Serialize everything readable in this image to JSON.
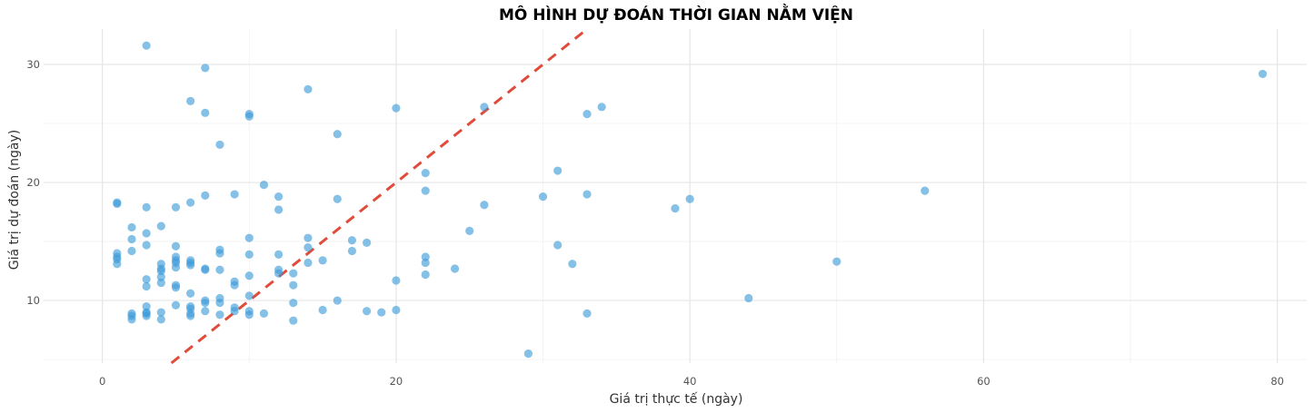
{
  "chart_data": {
    "type": "scatter",
    "title": "MÔ HÌNH DỰ ĐOÁN THỜI GIAN NẰM VIỆN",
    "xlabel": "Giá trị thực tế (ngày)",
    "ylabel": "Giá trị dự đoán (ngày)",
    "xlim": [
      -4,
      82
    ],
    "ylim": [
      4.7,
      33
    ],
    "x_ticks": [
      0,
      20,
      40,
      60,
      80
    ],
    "y_ticks": [
      10,
      20,
      30
    ],
    "grid": true,
    "reference_line": {
      "type": "y=x",
      "color": "#e04b3a",
      "style": "dashed"
    },
    "point_color": "#3a9ad9",
    "points": [
      [
        1,
        18.3
      ],
      [
        1,
        18.2
      ],
      [
        1,
        14.0
      ],
      [
        1,
        13.7
      ],
      [
        1,
        13.5
      ],
      [
        1,
        13.1
      ],
      [
        2,
        16.2
      ],
      [
        2,
        15.2
      ],
      [
        2,
        14.2
      ],
      [
        2,
        8.9
      ],
      [
        2,
        8.7
      ],
      [
        2,
        8.4
      ],
      [
        3,
        31.6
      ],
      [
        3,
        17.9
      ],
      [
        3,
        15.7
      ],
      [
        3,
        14.7
      ],
      [
        3,
        11.8
      ],
      [
        3,
        11.2
      ],
      [
        3,
        9.5
      ],
      [
        3,
        9.0
      ],
      [
        3,
        8.9
      ],
      [
        3,
        8.7
      ],
      [
        4,
        16.3
      ],
      [
        4,
        13.1
      ],
      [
        4,
        12.7
      ],
      [
        4,
        12.5
      ],
      [
        4,
        12.0
      ],
      [
        4,
        11.5
      ],
      [
        4,
        9.0
      ],
      [
        4,
        8.4
      ],
      [
        5,
        17.9
      ],
      [
        5,
        14.6
      ],
      [
        5,
        13.7
      ],
      [
        5,
        13.4
      ],
      [
        5,
        13.2
      ],
      [
        5,
        12.8
      ],
      [
        5,
        11.3
      ],
      [
        5,
        11.1
      ],
      [
        5,
        9.6
      ],
      [
        6,
        26.9
      ],
      [
        6,
        18.3
      ],
      [
        6,
        13.4
      ],
      [
        6,
        13.2
      ],
      [
        6,
        13.0
      ],
      [
        6,
        10.6
      ],
      [
        6,
        9.5
      ],
      [
        6,
        9.3
      ],
      [
        6,
        8.9
      ],
      [
        6,
        8.7
      ],
      [
        7,
        29.7
      ],
      [
        7,
        25.9
      ],
      [
        7,
        18.9
      ],
      [
        7,
        12.7
      ],
      [
        7,
        12.6
      ],
      [
        7,
        10.0
      ],
      [
        7,
        9.8
      ],
      [
        7,
        9.1
      ],
      [
        8,
        23.2
      ],
      [
        8,
        14.3
      ],
      [
        8,
        14.0
      ],
      [
        8,
        12.6
      ],
      [
        8,
        10.2
      ],
      [
        8,
        9.8
      ],
      [
        8,
        8.8
      ],
      [
        9,
        19.0
      ],
      [
        9,
        11.6
      ],
      [
        9,
        11.3
      ],
      [
        9,
        9.4
      ],
      [
        9,
        9.1
      ],
      [
        10,
        25.8
      ],
      [
        10,
        25.6
      ],
      [
        10,
        15.3
      ],
      [
        10,
        13.9
      ],
      [
        10,
        12.1
      ],
      [
        10,
        10.4
      ],
      [
        10,
        9.1
      ],
      [
        10,
        8.8
      ],
      [
        11,
        19.8
      ],
      [
        11,
        8.9
      ],
      [
        12,
        18.8
      ],
      [
        12,
        17.7
      ],
      [
        12,
        13.9
      ],
      [
        12,
        12.6
      ],
      [
        12,
        12.3
      ],
      [
        13,
        12.3
      ],
      [
        13,
        11.3
      ],
      [
        13,
        9.8
      ],
      [
        13,
        8.3
      ],
      [
        14,
        27.9
      ],
      [
        14,
        15.3
      ],
      [
        14,
        14.5
      ],
      [
        14,
        13.2
      ],
      [
        15,
        13.4
      ],
      [
        15,
        9.2
      ],
      [
        16,
        24.1
      ],
      [
        16,
        18.6
      ],
      [
        16,
        10.0
      ],
      [
        17,
        15.1
      ],
      [
        17,
        14.2
      ],
      [
        18,
        14.9
      ],
      [
        18,
        9.1
      ],
      [
        19,
        9.0
      ],
      [
        20,
        26.3
      ],
      [
        20,
        11.7
      ],
      [
        20,
        9.2
      ],
      [
        22,
        20.8
      ],
      [
        22,
        19.3
      ],
      [
        22,
        13.7
      ],
      [
        22,
        13.2
      ],
      [
        22,
        12.2
      ],
      [
        24,
        12.7
      ],
      [
        25,
        15.9
      ],
      [
        26,
        26.4
      ],
      [
        26,
        18.1
      ],
      [
        29,
        5.5
      ],
      [
        30,
        18.8
      ],
      [
        31,
        21.0
      ],
      [
        31,
        14.7
      ],
      [
        32,
        13.1
      ],
      [
        33,
        25.8
      ],
      [
        33,
        19.0
      ],
      [
        33,
        8.9
      ],
      [
        34,
        26.4
      ],
      [
        39,
        17.8
      ],
      [
        40,
        18.6
      ],
      [
        44,
        10.2
      ],
      [
        50,
        13.3
      ],
      [
        56,
        19.3
      ],
      [
        79,
        29.2
      ]
    ]
  }
}
